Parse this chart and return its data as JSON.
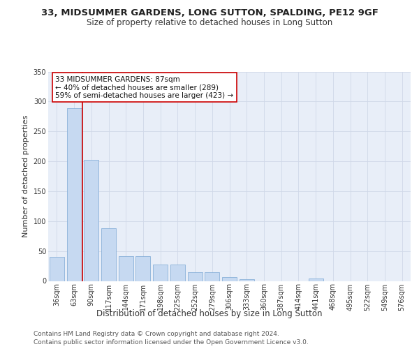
{
  "title1": "33, MIDSUMMER GARDENS, LONG SUTTON, SPALDING, PE12 9GF",
  "title2": "Size of property relative to detached houses in Long Sutton",
  "xlabel": "Distribution of detached houses by size in Long Sutton",
  "ylabel": "Number of detached properties",
  "categories": [
    "36sqm",
    "63sqm",
    "90sqm",
    "117sqm",
    "144sqm",
    "171sqm",
    "198sqm",
    "225sqm",
    "252sqm",
    "279sqm",
    "306sqm",
    "333sqm",
    "360sqm",
    "387sqm",
    "414sqm",
    "441sqm",
    "468sqm",
    "495sqm",
    "522sqm",
    "549sqm",
    "576sqm"
  ],
  "values": [
    40,
    289,
    203,
    88,
    42,
    42,
    28,
    28,
    15,
    15,
    7,
    3,
    0,
    0,
    0,
    4,
    0,
    0,
    0,
    0,
    0
  ],
  "bar_color": "#c6d9f1",
  "bar_edge_color": "#7ba7d4",
  "bar_edge_width": 0.5,
  "vline_color": "#cc0000",
  "vline_x": 1.5,
  "annotation_lines": [
    "33 MIDSUMMER GARDENS: 87sqm",
    "← 40% of detached houses are smaller (289)",
    "59% of semi-detached houses are larger (423) →"
  ],
  "annotation_box_color": "#cc0000",
  "ylim": [
    0,
    350
  ],
  "yticks": [
    0,
    50,
    100,
    150,
    200,
    250,
    300,
    350
  ],
  "grid_color": "#d0d8e8",
  "bg_color": "#e8eef8",
  "footnote1": "Contains HM Land Registry data © Crown copyright and database right 2024.",
  "footnote2": "Contains public sector information licensed under the Open Government Licence v3.0.",
  "title1_fontsize": 9.5,
  "title2_fontsize": 8.5,
  "xlabel_fontsize": 8.5,
  "ylabel_fontsize": 8,
  "tick_fontsize": 7,
  "annotation_fontsize": 7.5,
  "footnote_fontsize": 6.5
}
